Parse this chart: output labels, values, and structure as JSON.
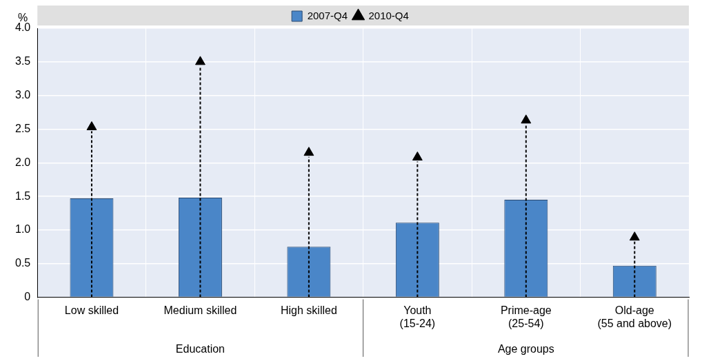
{
  "chart_data": {
    "type": "bar",
    "ylabel": "%",
    "categories": [
      "Low skilled",
      "Medium skilled",
      "High skilled",
      "Youth\n(15-24)",
      "Prime-age\n(25-54)",
      "Old-age\n(55 and above)"
    ],
    "series": [
      {
        "name": "2007-Q4",
        "color": "#4a86c8",
        "values": [
          1.47,
          1.48,
          0.75,
          1.11,
          1.45,
          0.47
        ]
      },
      {
        "name": "2010-Q4",
        "type": "scatter",
        "marker": "triangle",
        "line_style": "dashed",
        "color": "#000000",
        "values": [
          2.53,
          3.5,
          2.15,
          2.08,
          2.63,
          0.89
        ]
      }
    ],
    "ylim": [
      0,
      4
    ],
    "yticks": [
      0,
      0.5,
      {
        "value": 1,
        "label": "1.0"
      },
      1.5,
      {
        "value": 2,
        "label": "2.0"
      },
      2.5,
      {
        "value": 3,
        "label": "3.0"
      },
      3.5,
      {
        "value": 4,
        "label": "4.0"
      }
    ],
    "annotations": [
      "Education",
      "Age groups"
    ],
    "grid": true,
    "legend": "top"
  }
}
